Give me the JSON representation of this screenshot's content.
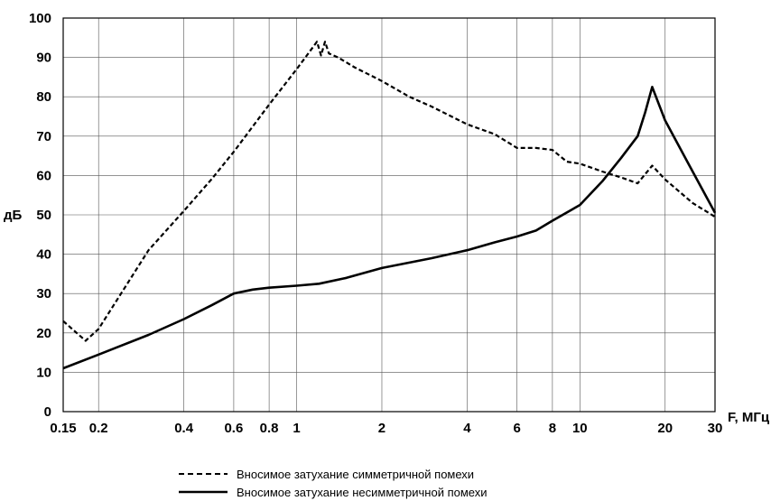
{
  "chart_data": {
    "type": "line",
    "title": "",
    "xlabel": "F, МГц",
    "ylabel": "дБ",
    "xscale": "log",
    "xlim": [
      0.15,
      30
    ],
    "ylim": [
      0,
      100
    ],
    "grid": true,
    "legend_position": "bottom",
    "x_ticks": [
      0.15,
      0.2,
      0.4,
      0.6,
      0.8,
      1,
      2,
      4,
      6,
      8,
      10,
      20,
      30
    ],
    "x_tick_labels": [
      "0.15",
      "0.2",
      "0.4",
      "0.6",
      "0.8",
      "1",
      "2",
      "4",
      "6",
      "8",
      "10",
      "20",
      "30"
    ],
    "y_ticks": [
      0,
      10,
      20,
      30,
      40,
      50,
      60,
      70,
      80,
      90,
      100
    ],
    "y_tick_labels": [
      "0",
      "10",
      "20",
      "30",
      "40",
      "50",
      "60",
      "70",
      "80",
      "90",
      "100"
    ],
    "series": [
      {
        "name": "Вносимое затухание симметричной помехи",
        "style": "dashed",
        "color": "#000000",
        "x": [
          0.15,
          0.18,
          0.2,
          0.25,
          0.3,
          0.4,
          0.5,
          0.6,
          0.8,
          1.0,
          1.1,
          1.18,
          1.22,
          1.26,
          1.3,
          1.4,
          1.6,
          2.0,
          2.5,
          3.0,
          4.0,
          5.0,
          6.0,
          7.0,
          8.0,
          9.0,
          10.0,
          12.0,
          14.0,
          16.0,
          18.0,
          20.0,
          25.0,
          30.0
        ],
        "y": [
          23,
          18,
          21,
          32,
          41,
          51,
          59,
          66,
          78,
          87,
          91,
          94,
          90.5,
          94,
          91,
          90,
          87.5,
          84,
          80,
          77.5,
          73,
          70.5,
          67,
          67,
          66.5,
          63.5,
          63,
          61,
          59.5,
          58,
          62.5,
          59,
          53,
          49.5
        ]
      },
      {
        "name": "Вносимое затухание несимметричной помехи",
        "style": "solid",
        "color": "#000000",
        "x": [
          0.15,
          0.2,
          0.3,
          0.4,
          0.5,
          0.6,
          0.7,
          0.8,
          1.0,
          1.2,
          1.5,
          2.0,
          3.0,
          4.0,
          5.0,
          6.0,
          7.0,
          8.0,
          10.0,
          12.0,
          14.0,
          16.0,
          17.0,
          18.0,
          20.0,
          25.0,
          30.0
        ],
        "y": [
          11,
          14.5,
          19.5,
          23.5,
          27,
          30,
          31,
          31.5,
          32,
          32.5,
          34,
          36.5,
          39,
          41,
          43,
          44.5,
          46,
          48.5,
          52.5,
          58.5,
          64.5,
          70,
          76,
          82.5,
          74,
          61,
          50.5
        ]
      }
    ]
  }
}
